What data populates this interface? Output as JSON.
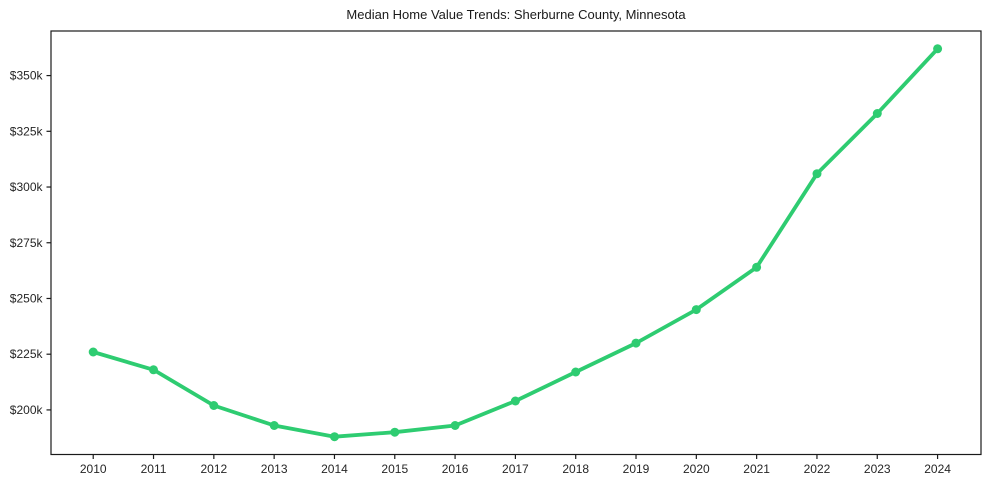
{
  "figure": {
    "background": "#ffffff"
  },
  "chart_data": {
    "type": "line",
    "title": "Median Home Value Trends: Sherburne County, Minnesota",
    "x": [
      2010,
      2011,
      2012,
      2013,
      2014,
      2015,
      2016,
      2017,
      2018,
      2019,
      2020,
      2021,
      2022,
      2023,
      2024
    ],
    "x_tick_labels": [
      "2010",
      "2011",
      "2012",
      "2013",
      "2014",
      "2015",
      "2016",
      "2017",
      "2018",
      "2019",
      "2020",
      "2021",
      "2022",
      "2023",
      "2024"
    ],
    "series": [
      {
        "name": "Median Home Value",
        "values": [
          226000,
          218000,
          202000,
          193000,
          188000,
          190000,
          193000,
          204000,
          217000,
          230000,
          245000,
          264000,
          306000,
          333000,
          362000
        ],
        "color": "#2ecc71",
        "marker": "circle"
      }
    ],
    "xlabel": "",
    "ylabel": "",
    "xlim": [
      2009.3,
      2024.72
    ],
    "ylim": [
      180000,
      370000
    ],
    "yticks": [
      200000,
      225000,
      250000,
      275000,
      300000,
      325000,
      350000
    ],
    "ytick_labels": [
      "$200k",
      "$225k",
      "$250k",
      "$275k",
      "$300k",
      "$325k",
      "$350k"
    ],
    "grid": false,
    "legend_position": "none",
    "frame": "full-box",
    "axis_color": "#1a1a1a",
    "tick_label_color": "#262626",
    "title_color": "#1a1a1a"
  }
}
